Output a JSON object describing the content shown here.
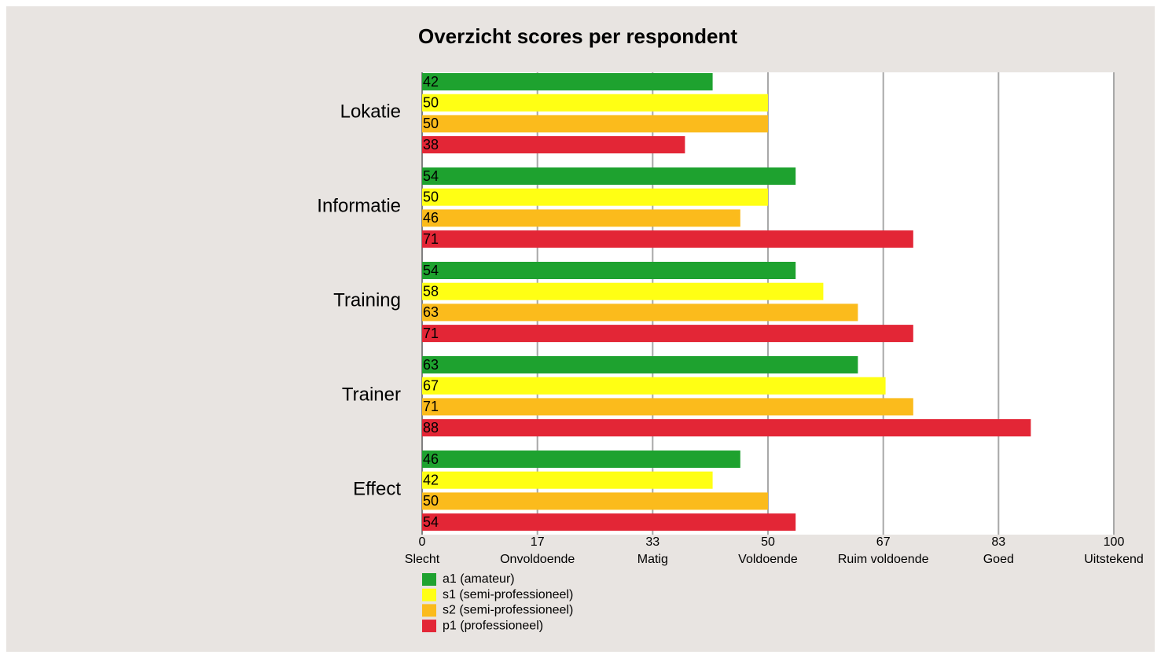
{
  "chart_data": {
    "type": "bar",
    "orientation": "horizontal",
    "title": "Overzicht scores per respondent",
    "categories": [
      "Lokatie",
      "Informatie",
      "Training",
      "Trainer",
      "Effect"
    ],
    "series": [
      {
        "name": "a1 (amateur)",
        "color": "#1ea22f",
        "values": [
          42,
          54,
          54,
          63,
          46
        ]
      },
      {
        "name": "s1 (semi-professioneel)",
        "color": "#ffff14",
        "values": [
          50,
          50,
          58,
          67,
          42
        ]
      },
      {
        "name": "s2 (semi-professioneel)",
        "color": "#fbbb1c",
        "values": [
          50,
          46,
          63,
          71,
          50
        ]
      },
      {
        "name": "p1 (professioneel)",
        "color": "#e32636",
        "values": [
          38,
          71,
          71,
          88,
          54
        ]
      }
    ],
    "xlim": [
      0,
      100
    ],
    "xticks": [
      0,
      {
        "value": 16.67,
        "label": "17"
      },
      {
        "value": 33.33,
        "label": "33"
      },
      50,
      {
        "value": 66.67,
        "label": "67"
      },
      {
        "value": 83.33,
        "label": "83"
      },
      100
    ],
    "xtick_names": [
      "Slecht",
      "Onvoldoende",
      "Matig",
      "Voldoende",
      "Ruim voldoende",
      "Goed",
      "Uitstekend"
    ],
    "grid": true,
    "legend": "bottom-left"
  }
}
